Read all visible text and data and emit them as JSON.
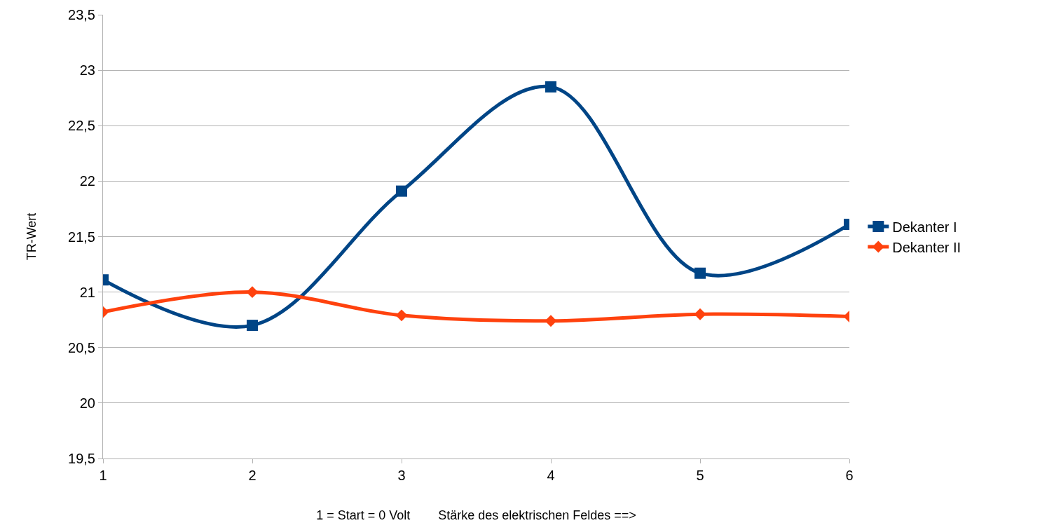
{
  "chart_data": {
    "type": "line",
    "xlabel": "1 = Start = 0 Volt        Stärke des elektrischen Feldes ==>",
    "ylabel": "TR-Wert",
    "x": [
      1,
      2,
      3,
      4,
      5,
      6
    ],
    "series": [
      {
        "name": "Dekanter I",
        "color": "#004586",
        "marker": "square",
        "values": [
          21.11,
          20.7,
          21.91,
          22.85,
          21.17,
          21.61
        ]
      },
      {
        "name": "Dekanter II",
        "color": "#ff420e",
        "marker": "diamond",
        "values": [
          20.82,
          21.0,
          20.79,
          20.74,
          20.8,
          20.78
        ]
      }
    ],
    "xlim": [
      1,
      6
    ],
    "xticks": [
      1,
      2,
      3,
      4,
      5,
      6
    ],
    "ylim": [
      19.5,
      23.5
    ],
    "yticks": [
      {
        "value": 19.5,
        "label": "19,5"
      },
      {
        "value": 20,
        "label": "20"
      },
      {
        "value": 20.5,
        "label": "20,5"
      },
      {
        "value": 21,
        "label": "21"
      },
      {
        "value": 21.5,
        "label": "21,5"
      },
      {
        "value": 22,
        "label": "22"
      },
      {
        "value": 22.5,
        "label": "22,5"
      },
      {
        "value": 23,
        "label": "23"
      },
      {
        "value": 23.5,
        "label": "23,5"
      }
    ],
    "grid": "y",
    "legend": "right",
    "line_style": "solid"
  }
}
